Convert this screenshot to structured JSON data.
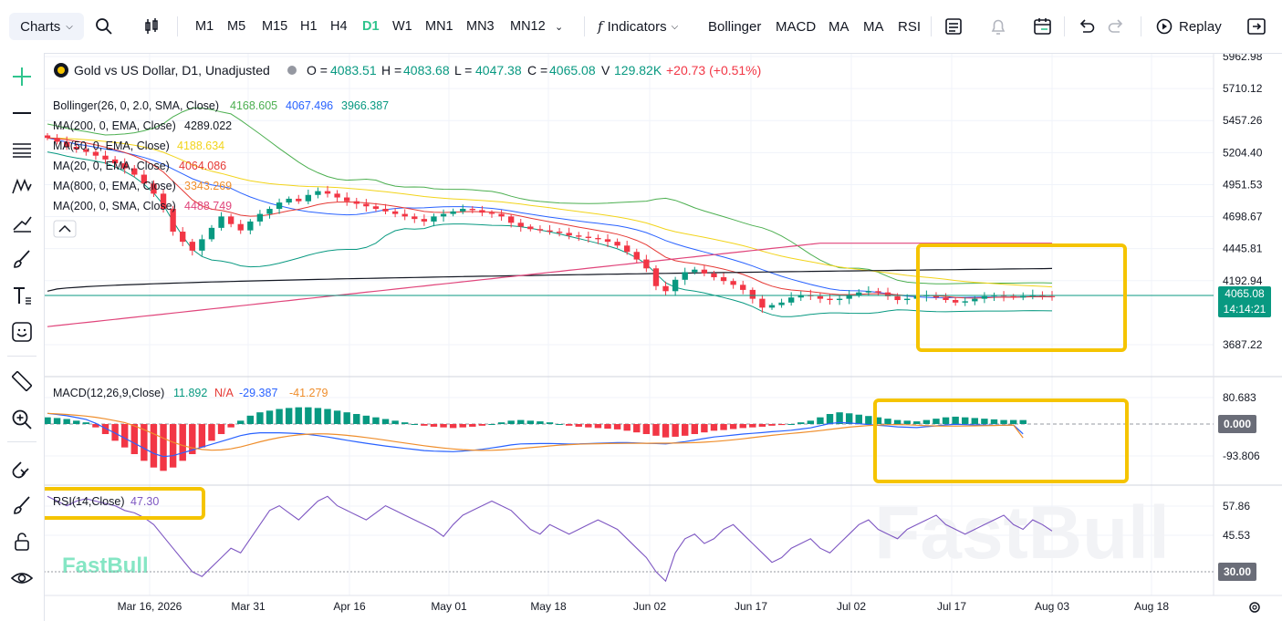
{
  "toolbar": {
    "charts_label": "Charts",
    "timeframes": [
      "M1",
      "M5",
      "M15",
      "H1",
      "H4",
      "D1",
      "W1",
      "MN1",
      "MN3",
      "MN12"
    ],
    "active_timeframe": "D1",
    "indicators_label": "Indicators",
    "quick_indicators": [
      "Bollinger",
      "MACD",
      "MA",
      "MA",
      "RSI"
    ],
    "replay_label": "Replay"
  },
  "symbol": {
    "title": "Gold vs US Dollar, D1, Unadjusted",
    "o_label": "O =",
    "o": "4083.51",
    "h_label": "H =",
    "h": "4083.68",
    "l_label": "L =",
    "l": "4047.38",
    "c_label": "C =",
    "c": "4065.08",
    "v_label": "V",
    "v": "129.82K",
    "change": "+20.73 (+0.51%)"
  },
  "legend": [
    {
      "label": "Bollinger(26, 0, 2.0, SMA, Close)",
      "values": [
        "4168.605",
        "4067.496",
        "3966.387"
      ],
      "colors": [
        "#4caf50",
        "#2962ff",
        "#089981"
      ]
    },
    {
      "label": "MA(200, 0, EMA, Close)",
      "values": [
        "4289.022"
      ],
      "colors": [
        "#131722"
      ]
    },
    {
      "label": "MA(50, 0, EMA, Close)",
      "values": [
        "4188.634"
      ],
      "colors": [
        "#f2d41a"
      ]
    },
    {
      "label": "MA(20, 0, EMA, Close)",
      "values": [
        "4064.086"
      ],
      "colors": [
        "#e53935"
      ]
    },
    {
      "label": "MA(800, 0, EMA, Close)",
      "values": [
        "3343.269"
      ],
      "colors": [
        "#ef8e2c"
      ]
    },
    {
      "label": "MA(200, 0, SMA, Close)",
      "values": [
        "4488.749"
      ],
      "colors": [
        "#e0457b"
      ]
    }
  ],
  "macd_legend": {
    "label": "MACD(12,26,9,Close)",
    "values": [
      "11.892",
      "N/A",
      "-29.387",
      "-41.279"
    ],
    "colors": [
      "#089981",
      "#e53935",
      "#2962ff",
      "#ef8e2c"
    ]
  },
  "rsi_legend": {
    "label": "RSI(14,Close)",
    "value": "47.30"
  },
  "price_tag": {
    "price": "4065.08",
    "countdown": "14:14:21"
  },
  "macd_zero_tag": "0.000",
  "rsi_level_tag": "30.00",
  "watermark": "FastBull",
  "colors": {
    "up": "#089981",
    "down": "#f23645",
    "accent": "#2fc48d",
    "highlight": "#f5c400",
    "rsi": "#7e57c2"
  },
  "chart_data": [
    {
      "type": "candlestick",
      "y_ticks": [
        "5962.98",
        "5710.12",
        "5457.26",
        "5204.40",
        "4951.53",
        "4698.67",
        "4445.81",
        "4192.94",
        "3687.22"
      ],
      "x_ticks": [
        "Mar 16, 2026",
        "Mar 31",
        "Apr 16",
        "May 01",
        "May 18",
        "Jun 02",
        "Jun 17",
        "Jul 02",
        "Jul 17",
        "Aug 03",
        "Aug 18"
      ],
      "ylim": [
        3560,
        6000
      ],
      "start_date": "2026-03-05",
      "bars_count": 105,
      "approx_close": [
        5320,
        5290,
        5250,
        5230,
        5210,
        5180,
        5150,
        5120,
        5080,
        5030,
        4960,
        4880,
        4760,
        4580,
        4500,
        4430,
        4520,
        4610,
        4700,
        4640,
        4590,
        4660,
        4720,
        4760,
        4810,
        4840,
        4820,
        4870,
        4900,
        4880,
        4850,
        4820,
        4800,
        4780,
        4760,
        4740,
        4720,
        4700,
        4680,
        4660,
        4700,
        4720,
        4740,
        4760,
        4750,
        4730,
        4720,
        4700,
        4650,
        4620,
        4600,
        4590,
        4580,
        4570,
        4550,
        4540,
        4530,
        4520,
        4500,
        4470,
        4420,
        4360,
        4290,
        4150,
        4110,
        4200,
        4260,
        4280,
        4250,
        4220,
        4190,
        4160,
        4120,
        4050,
        3980,
        4000,
        4020,
        4060,
        4080,
        4070,
        4050,
        4040,
        4050,
        4080,
        4100,
        4110,
        4100,
        4070,
        4040,
        4050,
        4070,
        4080,
        4060,
        4040,
        4020,
        4030,
        4050,
        4070,
        4080,
        4070,
        4060,
        4070,
        4080,
        4070,
        4065.08
      ],
      "bollinger_last": {
        "upper": 4168.605,
        "middle": 4067.496,
        "lower": 3966.387
      },
      "ma_last": {
        "ema200": 4289.022,
        "ema50": 4188.634,
        "ema20": 4064.086,
        "ema800": 3343.269,
        "sma200": 4488.749
      },
      "last_close": 4065.08
    },
    {
      "type": "bar",
      "name": "MACD(12,26,9,Close)",
      "y_ticks": [
        "80.683",
        "-93.806"
      ],
      "ylim": [
        -150,
        120
      ],
      "approx_histogram": [
        20,
        18,
        15,
        10,
        5,
        -10,
        -30,
        -50,
        -70,
        -90,
        -110,
        -130,
        -140,
        -130,
        -110,
        -90,
        -70,
        -50,
        -30,
        -10,
        10,
        25,
        35,
        40,
        45,
        48,
        50,
        50,
        48,
        45,
        40,
        35,
        30,
        25,
        20,
        15,
        10,
        5,
        0,
        -5,
        -8,
        -10,
        -12,
        -10,
        -8,
        -5,
        0,
        5,
        10,
        12,
        10,
        8,
        5,
        0,
        -5,
        -8,
        -10,
        -12,
        -14,
        -16,
        -20,
        -25,
        -30,
        -35,
        -40,
        -38,
        -35,
        -30,
        -25,
        -20,
        -18,
        -15,
        -12,
        -10,
        -8,
        -5,
        -3,
        0,
        5,
        10,
        20,
        30,
        35,
        32,
        28,
        24,
        20,
        16,
        12,
        10,
        8,
        12,
        16,
        20,
        22,
        20,
        18,
        16,
        14,
        12,
        12,
        11.892
      ],
      "macd_last": -29.387,
      "signal_last": -41.279
    },
    {
      "type": "line",
      "name": "RSI(14,Close)",
      "y_ticks": [
        "57.86",
        "45.53",
        "30.00"
      ],
      "ylim": [
        24,
        62
      ],
      "approx_values": [
        62,
        60,
        58,
        60,
        61,
        60,
        59,
        58,
        56,
        55,
        53,
        50,
        45,
        40,
        35,
        30,
        28,
        32,
        36,
        40,
        38,
        44,
        50,
        56,
        58,
        55,
        52,
        56,
        60,
        62,
        58,
        56,
        54,
        52,
        55,
        58,
        56,
        54,
        52,
        50,
        48,
        45,
        50,
        54,
        56,
        58,
        60,
        58,
        56,
        52,
        48,
        46,
        50,
        48,
        46,
        48,
        50,
        52,
        50,
        48,
        44,
        40,
        36,
        30,
        26,
        38,
        44,
        46,
        42,
        44,
        48,
        50,
        46,
        42,
        38,
        34,
        36,
        40,
        42,
        44,
        40,
        38,
        42,
        46,
        50,
        52,
        48,
        46,
        44,
        48,
        50,
        52,
        54,
        50,
        48,
        46,
        48,
        50,
        52,
        54,
        50,
        48,
        52,
        50,
        47.3
      ]
    }
  ]
}
